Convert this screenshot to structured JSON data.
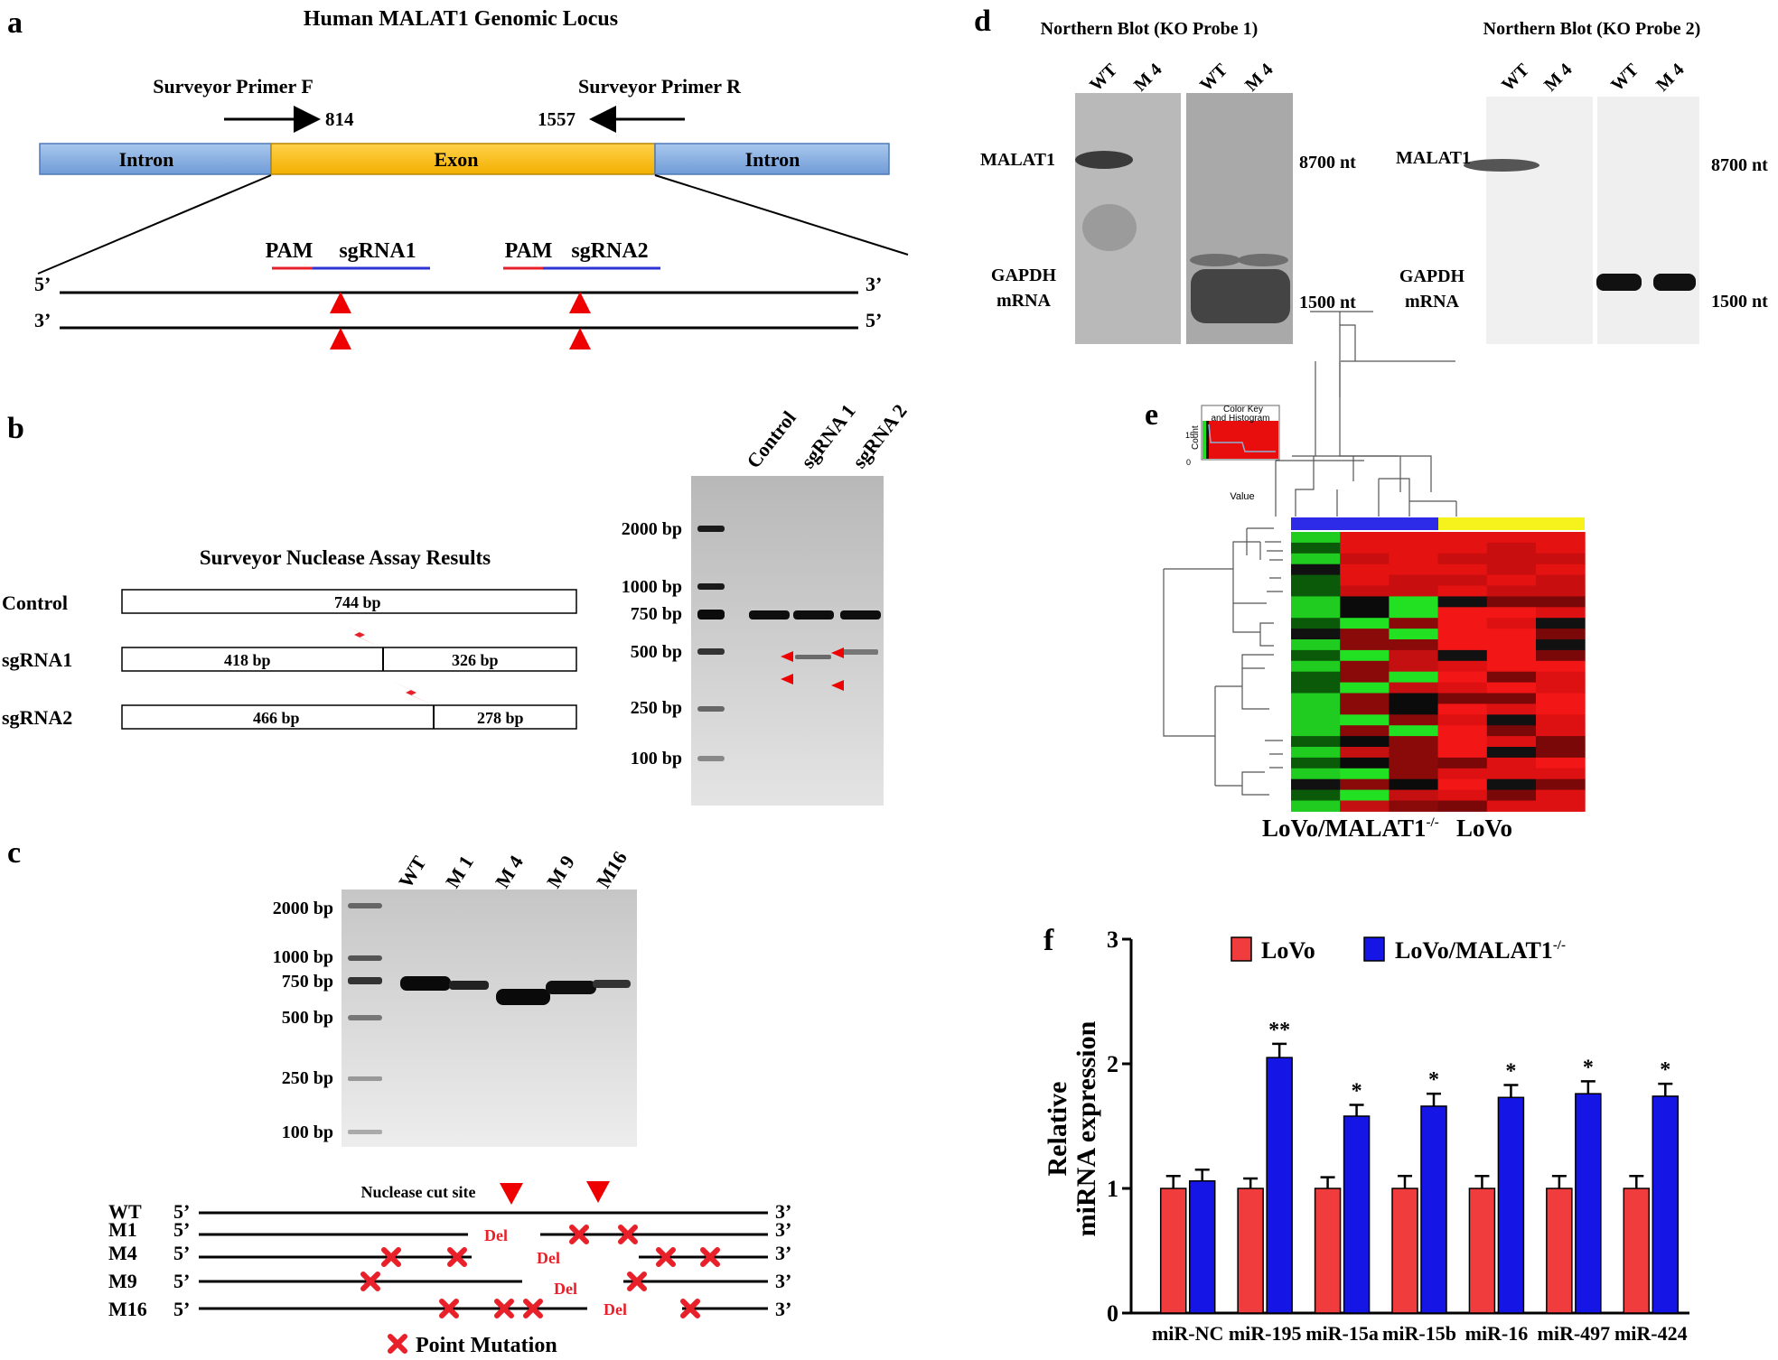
{
  "panel_letters": {
    "a": "a",
    "b": "b",
    "c": "c",
    "d": "d",
    "e": "e",
    "f": "f"
  },
  "panel_a": {
    "title": "Human MALAT1 Genomic Locus",
    "primer_f": "Surveyor Primer F",
    "primer_r": "Surveyor Primer R",
    "pos_f": "814",
    "pos_r": "1557",
    "intron_left": "Intron",
    "exon": "Exon",
    "intron_right": "Intron",
    "pam1": "PAM",
    "sgrna1": "sgRNA1",
    "pam2": "PAM",
    "sgrna2": "sgRNA2",
    "five_prime": "5’",
    "three_prime": "3’",
    "colors": {
      "intron": "#8DB4E2",
      "exon": "#FFC000",
      "pam": "#E8202A",
      "sgrna": "#2E33D6",
      "arrowhead": "#EE0000"
    }
  },
  "panel_b": {
    "title": "Surveyor Nuclease Assay Results",
    "rows": [
      {
        "label": "Control",
        "segments": [
          "744 bp"
        ]
      },
      {
        "label": "sgRNA1",
        "segments": [
          "418 bp",
          "326 bp"
        ]
      },
      {
        "label": "sgRNA2",
        "segments": [
          "466 bp",
          "278 bp"
        ]
      }
    ],
    "gel_lanes": [
      "Control",
      "sgRNA 1",
      "sgRNA 2"
    ],
    "ladder": [
      "2000 bp",
      "1000 bp",
      "750 bp",
      "500 bp",
      "250 bp",
      "100 bp"
    ]
  },
  "panel_c": {
    "gel_lanes": [
      "WT",
      "M 1",
      "M 4",
      "M 9",
      "M16"
    ],
    "ladder": [
      "2000 bp",
      "1000 bp",
      "750 bp",
      "500 bp",
      "250 bp",
      "100 bp"
    ],
    "cut_site_label": "Nuclease cut site",
    "del_label": "Del",
    "strands": [
      "WT",
      "M1",
      "M4",
      "M9",
      "M16"
    ],
    "legend": "Point Mutation"
  },
  "panel_d": {
    "blot1_title": "Northern Blot (KO Probe 1)",
    "blot2_title": "Northern Blot (KO Probe 2)",
    "lanes": [
      "WT",
      "M 4",
      "WT",
      "M 4"
    ],
    "malat1": "MALAT1",
    "gapdh_line1": "GAPDH",
    "gapdh_line2": "mRNA",
    "size_top": "8700 nt",
    "size_bottom": "1500 nt"
  },
  "panel_e": {
    "key_title_1": "Color Key",
    "key_title_2": "and Histogram",
    "key_axis": "Count",
    "key_xlabel": "Value",
    "key_ticks": [
      "0",
      "15"
    ],
    "label_ko": "LoVo/MALAT1",
    "label_ko_sup": "-/-",
    "label_wt": "LoVo",
    "colors": {
      "group_ko": "#2D2BE8",
      "group_wt": "#F6F21C"
    }
  },
  "chart_data": {
    "type": "bar",
    "title": "",
    "xlabel": "",
    "ylabel": "Relative miRNA expression",
    "ylim": [
      0,
      3
    ],
    "yticks": [
      "0",
      "1",
      "2",
      "3"
    ],
    "categories": [
      "miR-NC",
      "miR-195",
      "miR-15a",
      "miR-15b",
      "miR-16",
      "miR-497",
      "miR-424"
    ],
    "series": [
      {
        "name": "LoVo",
        "color": "#F03C3C",
        "values": [
          1.0,
          1.0,
          1.0,
          1.0,
          1.0,
          1.0,
          1.0
        ],
        "errors": [
          0.1,
          0.08,
          0.09,
          0.1,
          0.1,
          0.1,
          0.1
        ]
      },
      {
        "name": "LoVo/MALAT1",
        "name_sup": "-/-",
        "color": "#1515E6",
        "values": [
          1.06,
          2.05,
          1.58,
          1.66,
          1.73,
          1.76,
          1.74
        ],
        "errors": [
          0.09,
          0.11,
          0.09,
          0.1,
          0.1,
          0.1,
          0.1
        ]
      }
    ],
    "significance": [
      "",
      "**",
      "*",
      "*",
      "*",
      "*",
      "*"
    ],
    "legend_position": "top"
  }
}
